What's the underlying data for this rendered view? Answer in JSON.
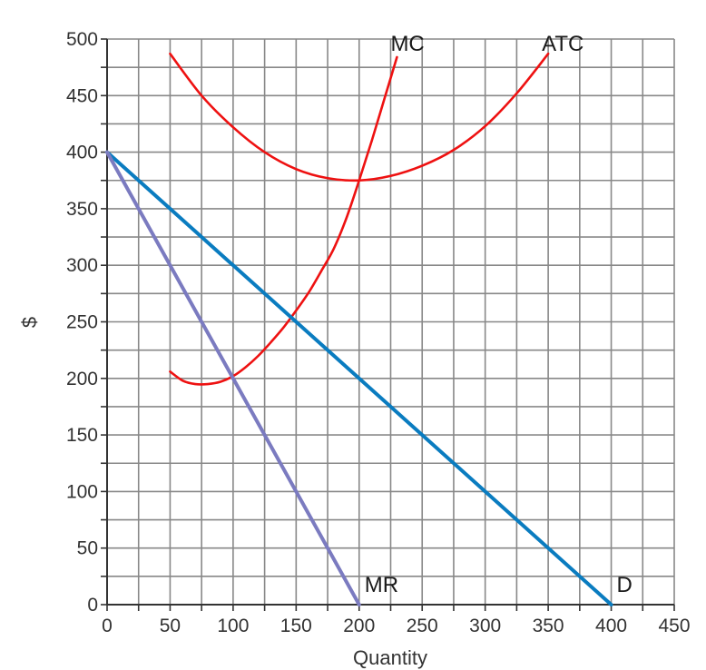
{
  "chart_data": {
    "type": "line",
    "title": "",
    "xlabel": "Quantity",
    "ylabel": "$",
    "xlim": [
      0,
      450
    ],
    "ylim": [
      0,
      500
    ],
    "x_ticks": [
      0,
      50,
      100,
      150,
      200,
      250,
      300,
      350,
      400,
      450
    ],
    "y_ticks": [
      0,
      50,
      100,
      150,
      200,
      250,
      300,
      350,
      400,
      450,
      500
    ],
    "grid": true,
    "grid_minor_step_x": 25,
    "grid_minor_step_y": 25,
    "series": [
      {
        "name": "MC",
        "color": "#ee1111",
        "x": [
          50,
          60,
          70,
          80,
          90,
          100,
          110,
          120,
          130,
          140,
          150,
          160,
          170,
          180,
          190,
          200,
          210,
          220,
          230
        ],
        "y": [
          206,
          198,
          195,
          195,
          197,
          202,
          210,
          220,
          232,
          245,
          260,
          276,
          295,
          315,
          342,
          375,
          410,
          447,
          484
        ]
      },
      {
        "name": "ATC",
        "color": "#ee1111",
        "x": [
          50,
          75,
          100,
          125,
          150,
          175,
          200,
          225,
          250,
          275,
          300,
          325,
          350
        ],
        "y": [
          487,
          450,
          422,
          400,
          385,
          377,
          375,
          379,
          388,
          402,
          423,
          452,
          487
        ]
      },
      {
        "name": "D",
        "color": "#0a7cc0",
        "x": [
          0,
          400
        ],
        "y": [
          400,
          0
        ]
      },
      {
        "name": "MR",
        "color": "#7b7bc0",
        "x": [
          0,
          200
        ],
        "y": [
          400,
          0
        ]
      }
    ]
  }
}
